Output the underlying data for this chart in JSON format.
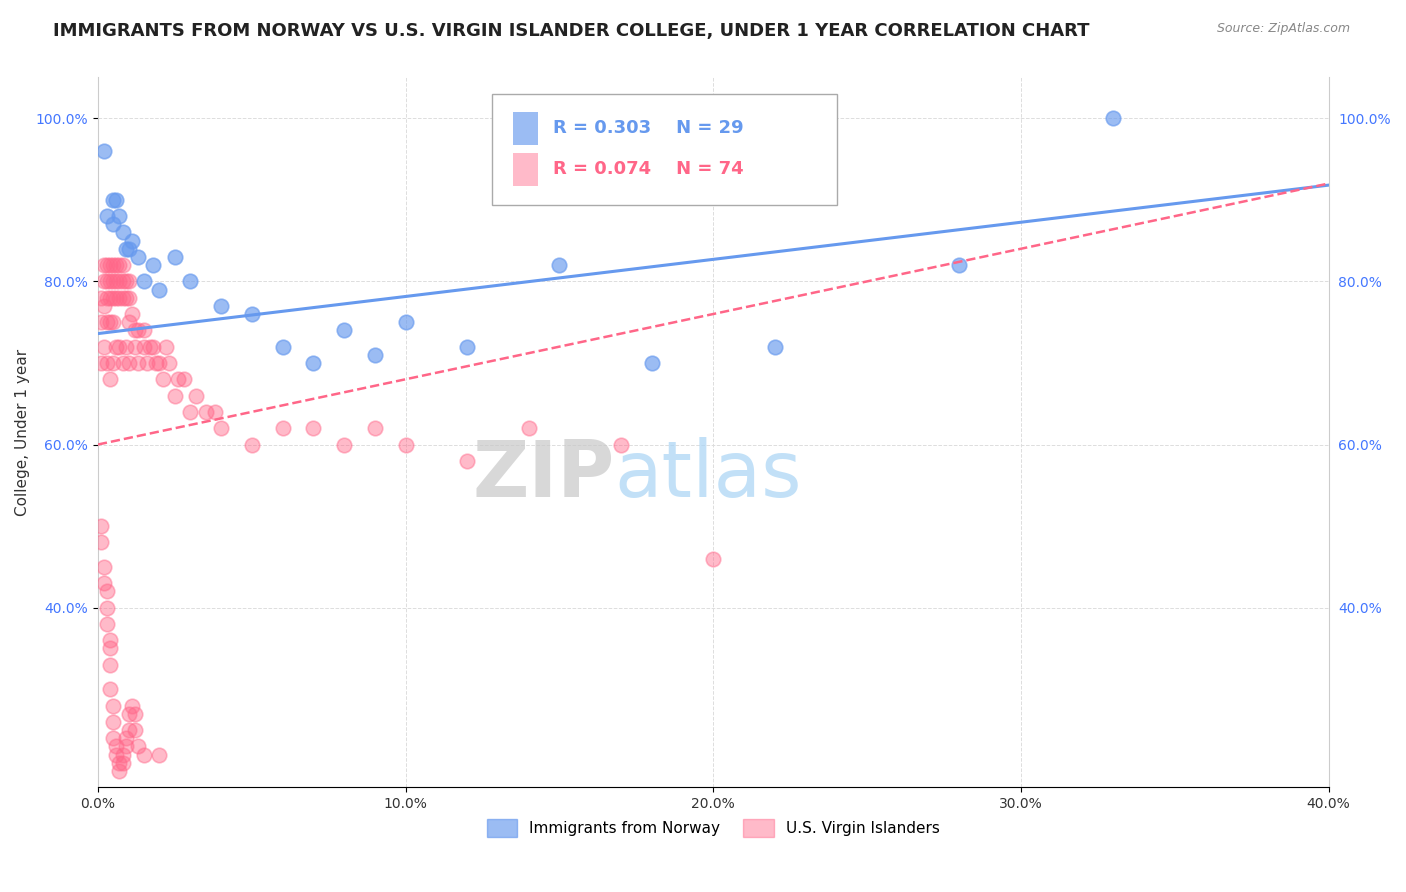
{
  "title": "IMMIGRANTS FROM NORWAY VS U.S. VIRGIN ISLANDER COLLEGE, UNDER 1 YEAR CORRELATION CHART",
  "source": "Source: ZipAtlas.com",
  "xlabel": "",
  "ylabel": "College, Under 1 year",
  "watermark_zip": "ZIP",
  "watermark_atlas": "atlas",
  "xlim": [
    0.0,
    0.4
  ],
  "ylim": [
    0.18,
    1.05
  ],
  "xticks": [
    0.0,
    0.1,
    0.2,
    0.3,
    0.4
  ],
  "yticks": [
    0.4,
    0.6,
    0.8,
    1.0
  ],
  "xtick_labels": [
    "0.0%",
    "10.0%",
    "20.0%",
    "30.0%",
    "40.0%"
  ],
  "ytick_labels": [
    "40.0%",
    "60.0%",
    "80.0%",
    "100.0%"
  ],
  "series1_label": "Immigrants from Norway",
  "series1_R": "0.303",
  "series1_N": "29",
  "series1_color": "#6699ee",
  "series2_label": "U.S. Virgin Islanders",
  "series2_R": "0.074",
  "series2_N": "74",
  "series2_color": "#ff6688",
  "norway_x": [
    0.002,
    0.003,
    0.005,
    0.005,
    0.006,
    0.007,
    0.008,
    0.009,
    0.01,
    0.011,
    0.013,
    0.015,
    0.018,
    0.02,
    0.025,
    0.03,
    0.04,
    0.05,
    0.06,
    0.07,
    0.08,
    0.09,
    0.1,
    0.12,
    0.15,
    0.18,
    0.22,
    0.28,
    0.33
  ],
  "norway_y": [
    0.96,
    0.88,
    0.9,
    0.87,
    0.9,
    0.88,
    0.86,
    0.84,
    0.84,
    0.85,
    0.83,
    0.8,
    0.82,
    0.79,
    0.83,
    0.8,
    0.77,
    0.76,
    0.72,
    0.7,
    0.74,
    0.71,
    0.75,
    0.72,
    0.82,
    0.7,
    0.72,
    0.82,
    1.0
  ],
  "virgin_x": [
    0.001,
    0.001,
    0.001,
    0.002,
    0.002,
    0.002,
    0.002,
    0.003,
    0.003,
    0.003,
    0.003,
    0.003,
    0.004,
    0.004,
    0.004,
    0.004,
    0.004,
    0.005,
    0.005,
    0.005,
    0.005,
    0.005,
    0.006,
    0.006,
    0.006,
    0.006,
    0.007,
    0.007,
    0.007,
    0.007,
    0.008,
    0.008,
    0.008,
    0.008,
    0.009,
    0.009,
    0.009,
    0.01,
    0.01,
    0.01,
    0.01,
    0.011,
    0.012,
    0.012,
    0.013,
    0.013,
    0.015,
    0.015,
    0.016,
    0.017,
    0.018,
    0.019,
    0.02,
    0.021,
    0.022,
    0.023,
    0.025,
    0.026,
    0.028,
    0.03,
    0.032,
    0.035,
    0.038,
    0.04,
    0.05,
    0.06,
    0.07,
    0.08,
    0.09,
    0.1,
    0.12,
    0.14,
    0.17,
    0.2
  ],
  "virgin_y": [
    0.78,
    0.75,
    0.7,
    0.82,
    0.8,
    0.77,
    0.72,
    0.82,
    0.8,
    0.78,
    0.75,
    0.7,
    0.82,
    0.8,
    0.78,
    0.75,
    0.68,
    0.82,
    0.8,
    0.78,
    0.75,
    0.7,
    0.82,
    0.8,
    0.78,
    0.72,
    0.82,
    0.8,
    0.78,
    0.72,
    0.82,
    0.8,
    0.78,
    0.7,
    0.8,
    0.78,
    0.72,
    0.8,
    0.78,
    0.75,
    0.7,
    0.76,
    0.74,
    0.72,
    0.74,
    0.7,
    0.74,
    0.72,
    0.7,
    0.72,
    0.72,
    0.7,
    0.7,
    0.68,
    0.72,
    0.7,
    0.66,
    0.68,
    0.68,
    0.64,
    0.66,
    0.64,
    0.64,
    0.62,
    0.6,
    0.62,
    0.62,
    0.6,
    0.62,
    0.6,
    0.58,
    0.62,
    0.6,
    0.46
  ],
  "virgin_low_y": [
    0.5,
    0.48,
    0.45,
    0.43,
    0.42,
    0.4,
    0.38,
    0.36,
    0.35,
    0.33,
    0.3,
    0.28,
    0.26,
    0.24,
    0.23,
    0.22,
    0.21,
    0.2,
    0.21,
    0.22,
    0.23,
    0.24,
    0.25,
    0.27,
    0.28,
    0.27,
    0.25,
    0.23,
    0.22,
    0.22
  ],
  "virgin_low_x": [
    0.001,
    0.001,
    0.002,
    0.002,
    0.003,
    0.003,
    0.003,
    0.004,
    0.004,
    0.004,
    0.004,
    0.005,
    0.005,
    0.005,
    0.006,
    0.006,
    0.007,
    0.007,
    0.008,
    0.008,
    0.009,
    0.009,
    0.01,
    0.01,
    0.011,
    0.012,
    0.012,
    0.013,
    0.015,
    0.02
  ],
  "background_color": "#ffffff",
  "grid_color": "#dddddd",
  "title_fontsize": 13,
  "axis_fontsize": 11,
  "tick_fontsize": 10,
  "norway_trendline": [
    0.736,
    0.918
  ],
  "virgin_trendline": [
    0.6,
    0.92
  ]
}
